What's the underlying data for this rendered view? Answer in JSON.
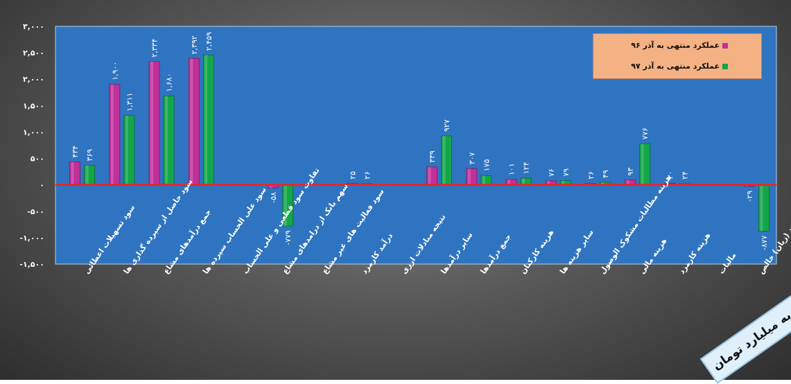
{
  "chart_data": {
    "type": "bar",
    "title": "",
    "ylim": [
      -1500,
      3000
    ],
    "y_ticks": [
      {
        "value": 3000,
        "label": "۳,۰۰۰"
      },
      {
        "value": 2500,
        "label": "۲,۵۰۰"
      },
      {
        "value": 2000,
        "label": "۲,۰۰۰"
      },
      {
        "value": 1500,
        "label": "۱,۵۰۰"
      },
      {
        "value": 1000,
        "label": "۱,۰۰۰"
      },
      {
        "value": 500,
        "label": "۵۰۰"
      },
      {
        "value": 0,
        "label": "۰"
      },
      {
        "value": -500,
        "label": "-۵۰۰"
      },
      {
        "value": -1000,
        "label": "-۱,۰۰۰"
      },
      {
        "value": -1500,
        "label": "-۱,۵۰۰"
      }
    ],
    "categories": [
      "سود تسهیلات اعطائی",
      "سود حاصل از سپرده گذاری ها",
      "جمع درآمدهای مشاع",
      "سود علی الحساب سپرده ها",
      "تفاوت سود قطعی و علی الحساب",
      "سهم بانک از درامدهای مشاع",
      "سود فعالیت های غیر مشاع",
      "درآمد کارمزد",
      "نتیجه مبادلات ارزی",
      "سایر درآمدها",
      "جمع درآمدها",
      "هزینه کارکنان",
      "سایر هزینه ها",
      "هزینه مطالبات مشکوک الوصول",
      "هزینه مالی",
      "هزینه کارمزد",
      "مالیات",
      "سود (زیان) خالص"
    ],
    "series": [
      {
        "name": "عملکرد منتهی به آذر ۹۶",
        "color": "#c0309a",
        "values": [
          434,
          1900,
          2334,
          2392,
          null,
          -58,
          null,
          25,
          null,
          339,
          307,
          101,
          76,
          26,
          93,
          30,
          null,
          -29
        ],
        "labels": [
          "۴۳۴",
          "۱,۹۰۰",
          "۲,۳۳۴",
          "۲,۳۹۲",
          "",
          "-۵۸",
          "",
          "۲۵",
          "",
          "۳۳۹",
          "۳۰۷",
          "۱۰۱",
          "۷۶",
          "۲۶",
          "۹۳",
          "۳۰",
          "",
          "-۲۹"
        ]
      },
      {
        "name": "عملکرد منتهی به آذر ۹۷",
        "color": "#13a54a",
        "values": [
          369,
          1311,
          1680,
          2459,
          null,
          -779,
          null,
          26,
          null,
          927,
          175,
          124,
          79,
          49,
          776,
          24,
          null,
          -877
        ],
        "labels": [
          "۳۶۹",
          "۱,۳۱۱",
          "۱,۶۸۰",
          "۲,۴۵۹",
          "",
          "-۷۷۹",
          "",
          "۲۶",
          "",
          "۹۲۷",
          "۱۷۵",
          "۱۲۴",
          "۷۹",
          "۴۹",
          "۷۷۶",
          "۲۴",
          "",
          "-۸۷۷"
        ]
      }
    ],
    "legend_position": "top-right",
    "grid": false,
    "zero_line_color": "#e8262a",
    "plot_background": "#2f74c0",
    "unit_note": "ارقام به میلیارد تومان"
  }
}
